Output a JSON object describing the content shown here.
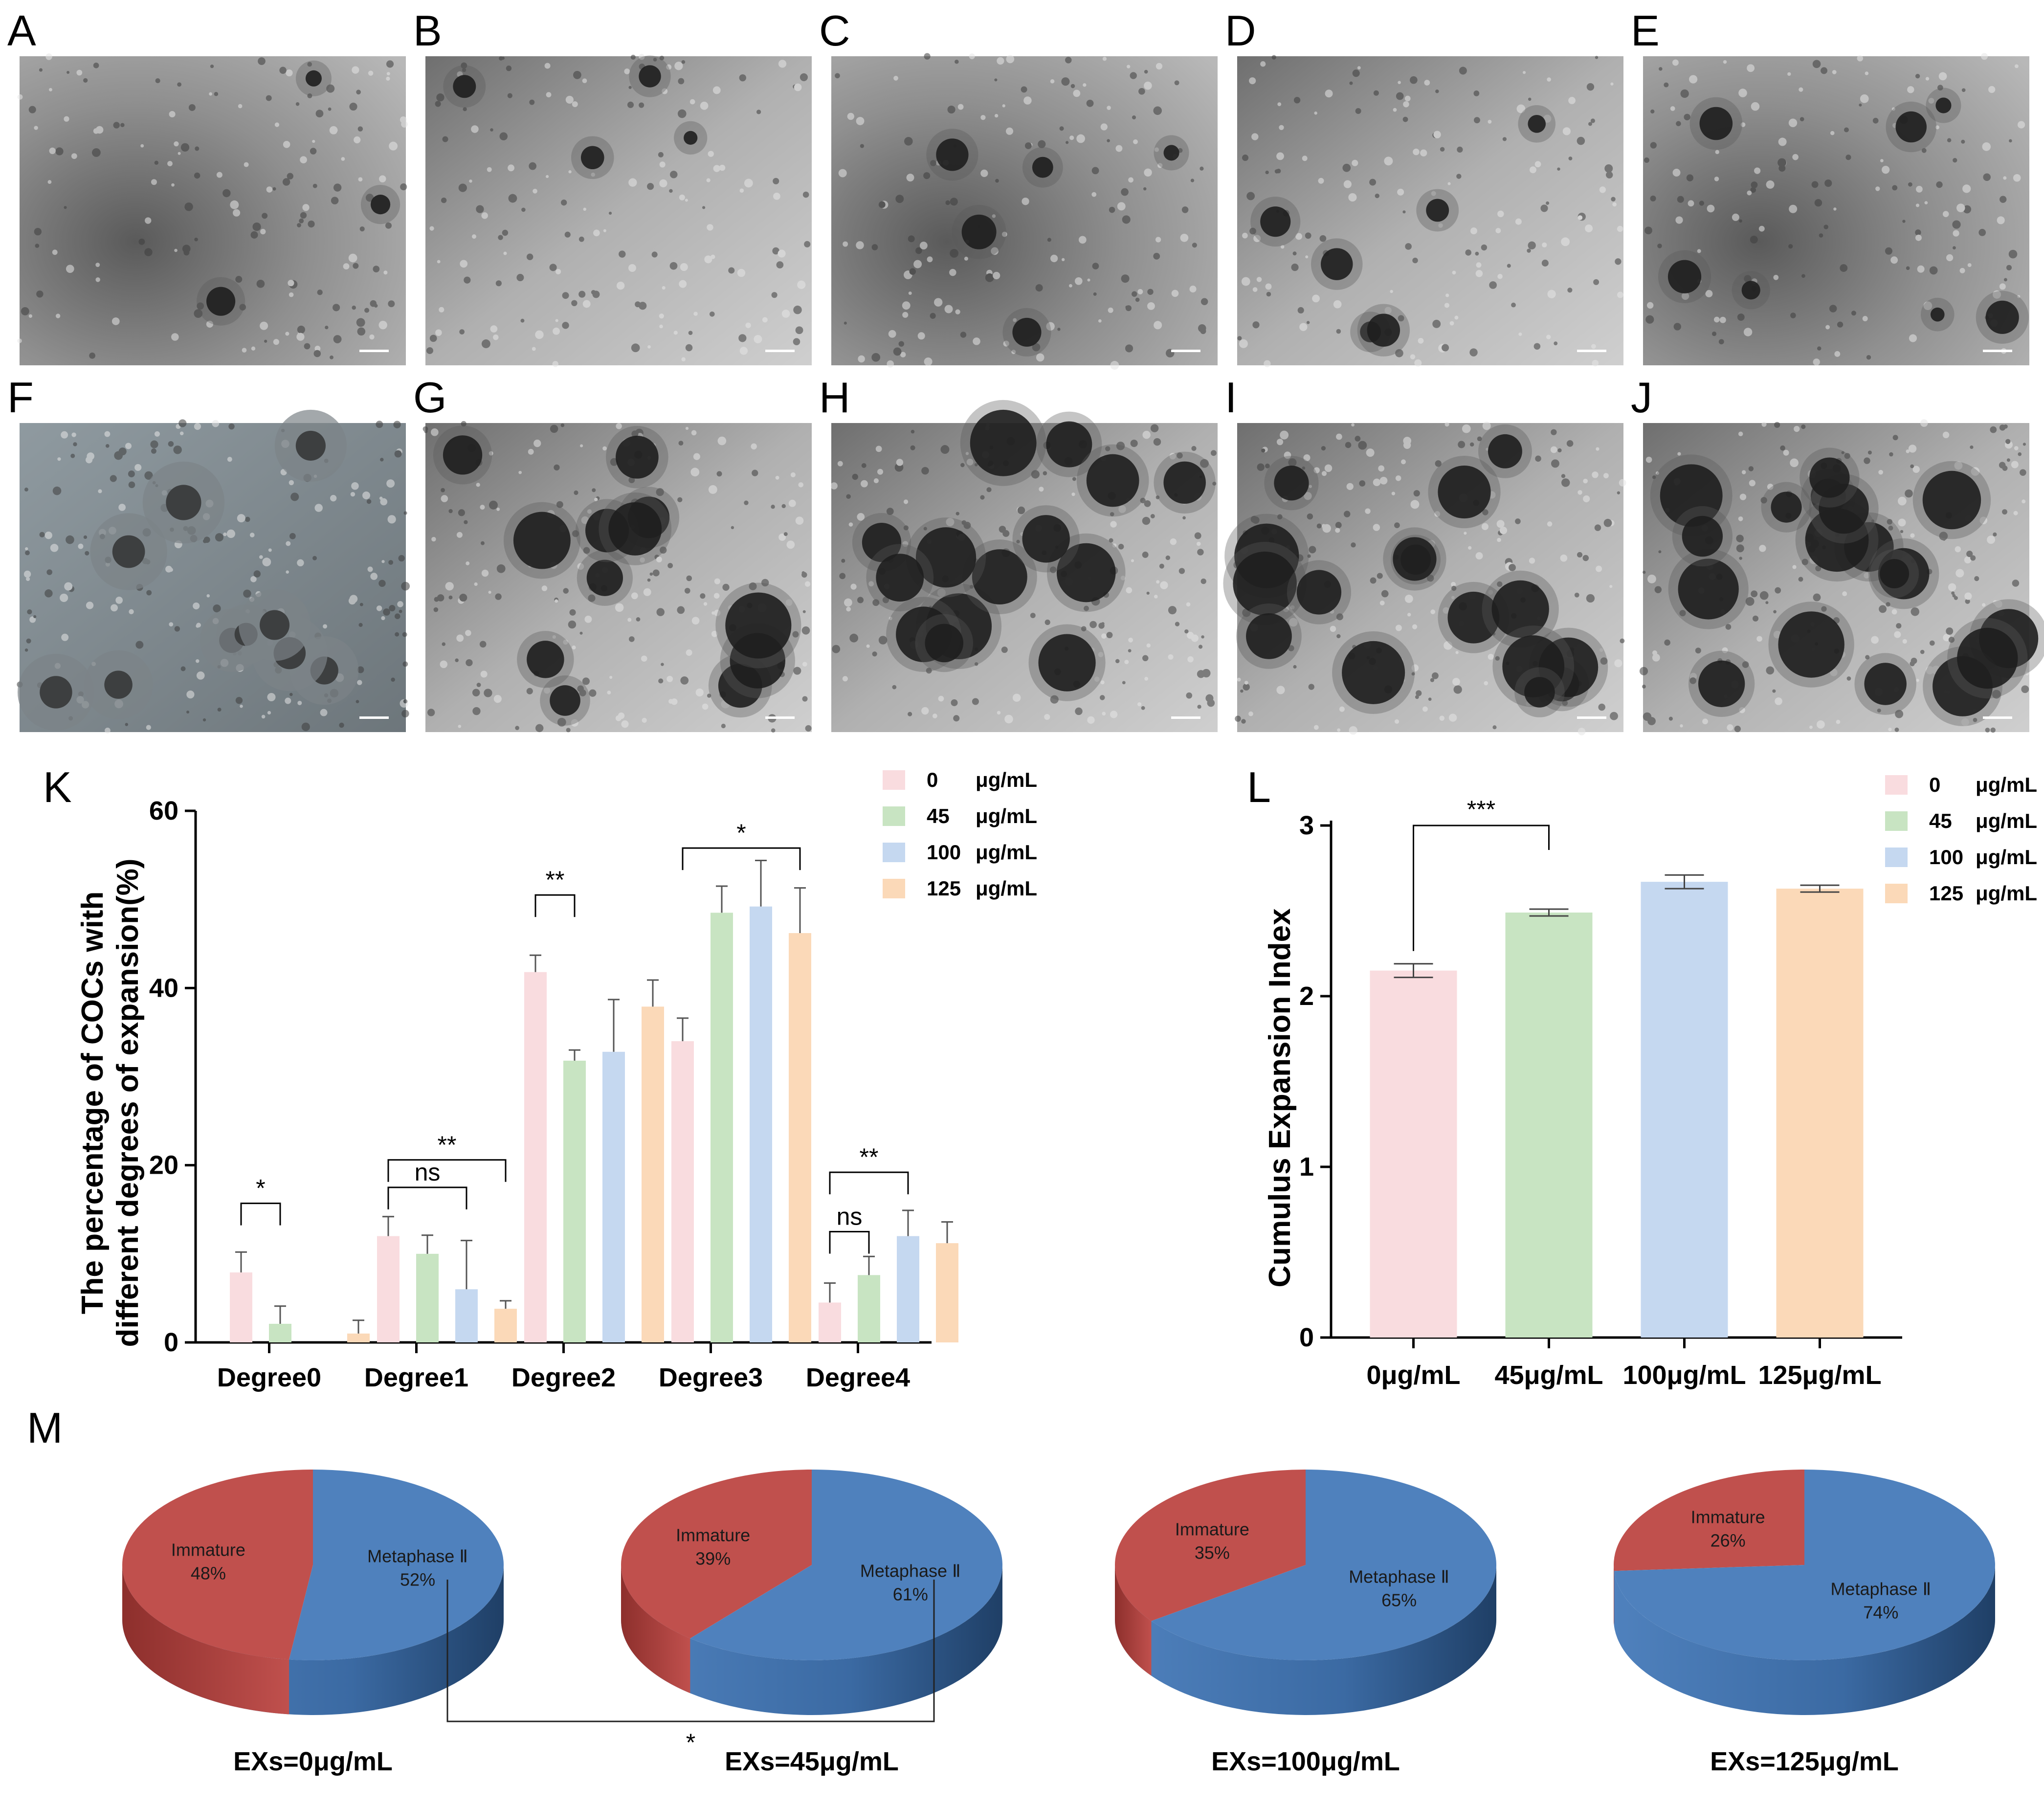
{
  "panel_labels": [
    "A",
    "B",
    "C",
    "D",
    "E",
    "F",
    "G",
    "H",
    "I",
    "J",
    "K",
    "L",
    "M"
  ],
  "colors": {
    "c0": "#f9dcdf",
    "c45": "#c8e4c2",
    "c100": "#c5d8f0",
    "c125": "#fbd9b8",
    "pie_red": "#c0504d",
    "pie_red_side": "#9b3a37",
    "pie_blue": "#4f81bd",
    "pie_blue_side": "#2f5b8c"
  },
  "micrographs": {
    "top_row": [
      "A",
      "B",
      "C",
      "D",
      "E"
    ],
    "bottom_row": [
      "F",
      "G",
      "H",
      "I",
      "J"
    ]
  },
  "chart_data": [
    {
      "panel": "K",
      "type": "bar",
      "ylabel": [
        "The percentage of COCs with",
        "different degrees of expansion(%)"
      ],
      "ylim": [
        0,
        60
      ],
      "yticks": [
        "0",
        "20",
        "40",
        "60"
      ],
      "categories": [
        "Degree0",
        "Degree1",
        "Degree2",
        "Degree3",
        "Degree4"
      ],
      "legend_position": "top-right",
      "legend": [
        {
          "value": "0",
          "unit": "μg/mL",
          "color": "#f9dcdf"
        },
        {
          "value": "45",
          "unit": "μg/mL",
          "color": "#c8e4c2"
        },
        {
          "value": "100",
          "unit": "μg/mL",
          "color": "#c5d8f0"
        },
        {
          "value": "125",
          "unit": "μg/mL",
          "color": "#fbd9b8"
        }
      ],
      "series": [
        {
          "values": [
            7.9,
            12.0,
            41.8,
            34.0,
            4.5
          ],
          "errors": [
            2.3,
            2.2,
            1.9,
            2.6,
            2.2
          ],
          "color": "#f9dcdf"
        },
        {
          "values": [
            2.1,
            10.0,
            31.8,
            48.5,
            7.6
          ],
          "errors": [
            2.0,
            2.1,
            1.2,
            3.0,
            2.1
          ],
          "color": "#c8e4c2"
        },
        {
          "values": [
            0.0,
            6.0,
            32.8,
            49.2,
            12.0
          ],
          "errors": [
            0.0,
            5.5,
            5.9,
            5.2,
            2.9
          ],
          "color": "#c5d8f0"
        },
        {
          "values": [
            1.0,
            3.8,
            37.9,
            46.2,
            11.2
          ],
          "errors": [
            1.5,
            0.9,
            3.0,
            5.1,
            2.4
          ],
          "color": "#fbd9b8"
        }
      ],
      "significance": [
        {
          "label": "*",
          "category": 0,
          "from": 0,
          "to": 1,
          "height": 15.7
        },
        {
          "label": "ns",
          "category": 1,
          "from": 0,
          "to": 2,
          "height": 17.5
        },
        {
          "label": "**",
          "category": 1,
          "from": 0,
          "to": 3,
          "height": 20.6
        },
        {
          "label": "**",
          "category": 2,
          "from": 0,
          "to": 1,
          "height": 50.5
        },
        {
          "label": "*",
          "category": 3,
          "from": 0,
          "to": 3,
          "height": 55.8
        },
        {
          "label": "ns",
          "category": 4,
          "from": 0,
          "to": 1,
          "height": 12.5
        },
        {
          "label": "**",
          "category": 4,
          "from": 0,
          "to": 2,
          "height": 19.2
        }
      ]
    },
    {
      "panel": "L",
      "type": "bar",
      "ylabel": "Cumulus Expansion Index",
      "ylim": [
        0,
        3
      ],
      "yticks": [
        "0",
        "1",
        "2",
        "3"
      ],
      "categories": [
        "0μg/mL",
        "45μg/mL",
        "100μg/mL",
        "125μg/mL"
      ],
      "values": [
        2.15,
        2.49,
        2.67,
        2.63
      ],
      "errors": [
        0.04,
        0.02,
        0.04,
        0.02
      ],
      "colors": [
        "#f9dcdf",
        "#c8e4c2",
        "#c5d8f0",
        "#fbd9b8"
      ],
      "legend_position": "top-right",
      "legend": [
        {
          "value": "0",
          "unit": "μg/mL",
          "color": "#f9dcdf"
        },
        {
          "value": "45",
          "unit": "μg/mL",
          "color": "#c8e4c2"
        },
        {
          "value": "100",
          "unit": "μg/mL",
          "color": "#c5d8f0"
        },
        {
          "value": "125",
          "unit": "μg/mL",
          "color": "#fbd9b8"
        }
      ],
      "significance": [
        {
          "label": "***",
          "from": 0,
          "to": 1,
          "height": 3.0
        }
      ]
    },
    {
      "panel": "M",
      "type": "pie",
      "pies": [
        {
          "title": "EXs=0μg/mL",
          "slices": [
            {
              "label": "Immature",
              "pct": "48%",
              "value": 48
            },
            {
              "label": "Metaphase Ⅱ",
              "pct": "52%",
              "value": 52
            }
          ]
        },
        {
          "title": "EXs=45μg/mL",
          "slices": [
            {
              "label": "Immature",
              "pct": "39%",
              "value": 39
            },
            {
              "label": "Metaphase Ⅱ",
              "pct": "61%",
              "value": 61
            }
          ]
        },
        {
          "title": "EXs=100μg/mL",
          "slices": [
            {
              "label": "Immature",
              "pct": "35%",
              "value": 35
            },
            {
              "label": "Metaphase Ⅱ",
              "pct": "65%",
              "value": 65
            }
          ]
        },
        {
          "title": "EXs=125μg/mL",
          "slices": [
            {
              "label": "Immature",
              "pct": "26%",
              "value": 26
            },
            {
              "label": "Metaphase Ⅱ",
              "pct": "74%",
              "value": 74
            }
          ]
        }
      ],
      "significance": [
        {
          "label": "*",
          "from": 0,
          "to": 1
        }
      ]
    }
  ]
}
